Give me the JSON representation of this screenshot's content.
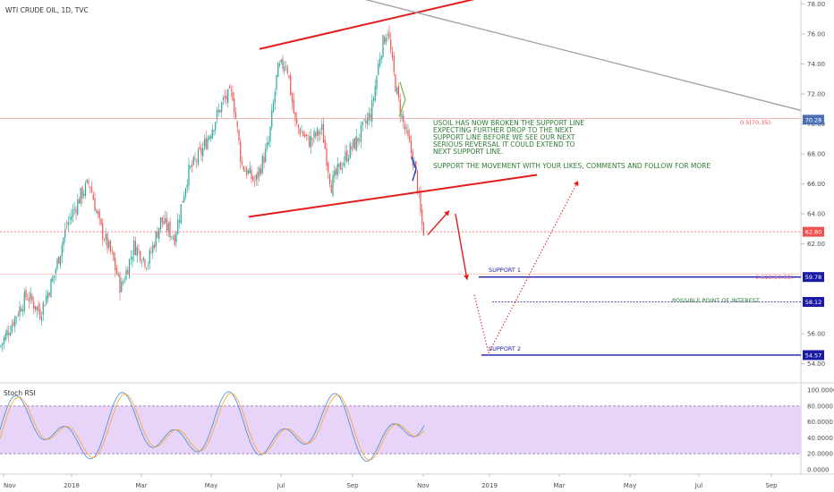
{
  "chart_data": {
    "type": "candlestick",
    "title": "WTI CRUDE OIL, 1D, TVC",
    "price_axis": {
      "range": [
        53.5,
        78.4
      ],
      "ticks": [
        "78.00",
        "76.00",
        "74.00",
        "72.00",
        "70.00",
        "68.00",
        "66.00",
        "64.00",
        "62.00",
        "56.00",
        "54.00"
      ]
    },
    "time_axis": {
      "labels": [
        "Nov",
        "2018",
        "Mar",
        "May",
        "Jul",
        "Sep",
        "Nov",
        "2019",
        "Mar",
        "May",
        "Jul",
        "Sep"
      ]
    },
    "price_labels": [
      {
        "value": 70.28,
        "text": "70.28",
        "color": "#4a6fb5"
      },
      {
        "value": 62.8,
        "text": "62.80",
        "color": "#ef5350"
      },
      {
        "value": 59.78,
        "text": "59.78",
        "color": "#1a1aa6"
      },
      {
        "value": 58.12,
        "text": "58.12",
        "color": "#1a1aa6"
      },
      {
        "value": 54.57,
        "text": "54.57",
        "color": "#1a1aa6"
      }
    ],
    "levels": [
      {
        "label": "SUPPORT 1",
        "value": 59.78
      },
      {
        "label": "POSSIBLE POINT OF INTEREST",
        "value": 58.12
      },
      {
        "label": "SUPPORT 2",
        "value": 54.57
      }
    ],
    "fib_levels": [
      {
        "label": "0.5(70.35)",
        "value": 70.35
      },
      {
        "label": "0.618(59.99)",
        "value": 59.99
      }
    ],
    "annotation_main": [
      "USOIL HAS NOW BROKEN THE SUPPORT LINE",
      "EXPECTING FURTHER DROP TO THE NEXT",
      "SUPPORT LINE BEFORE WE SEE OUR NEXT",
      "SERIOUS REVERSAL IT COULD EXTEND TO",
      "NEXT SUPPORT LINE."
    ],
    "annotation_secondary": "SUPPORT THE MOVEMENT WITH YOUR LIKES, COMMENTS AND FOLLOW FOR MORE",
    "close_path": [
      [
        0,
        55.1
      ],
      [
        15,
        56.9
      ],
      [
        30,
        58.6
      ],
      [
        45,
        57.4
      ],
      [
        60,
        59.8
      ],
      [
        75,
        63.3
      ],
      [
        90,
        65.2
      ],
      [
        100,
        66.1
      ],
      [
        112,
        63.1
      ],
      [
        125,
        61.2
      ],
      [
        135,
        59.0
      ],
      [
        150,
        61.9
      ],
      [
        165,
        60.7
      ],
      [
        180,
        63.6
      ],
      [
        195,
        62.4
      ],
      [
        210,
        66.7
      ],
      [
        225,
        68.1
      ],
      [
        240,
        70.2
      ],
      [
        250,
        71.6
      ],
      [
        260,
        72.0
      ],
      [
        270,
        67.3
      ],
      [
        285,
        66.1
      ],
      [
        300,
        68.6
      ],
      [
        310,
        73.5
      ],
      [
        320,
        74.2
      ],
      [
        330,
        70.0
      ],
      [
        345,
        68.8
      ],
      [
        360,
        69.6
      ],
      [
        370,
        65.9
      ],
      [
        385,
        67.7
      ],
      [
        400,
        69.0
      ],
      [
        415,
        70.8
      ],
      [
        425,
        74.8
      ],
      [
        433,
        76.4
      ],
      [
        440,
        73.3
      ],
      [
        445,
        71.6
      ],
      [
        450,
        70.2
      ],
      [
        455,
        69.1
      ],
      [
        460,
        68.0
      ],
      [
        465,
        66.6
      ],
      [
        468,
        65.0
      ],
      [
        471,
        63.4
      ],
      [
        474,
        62.8
      ]
    ],
    "stoch_rsi": {
      "name": "Stoch RSI",
      "range": [
        0,
        100
      ],
      "band": [
        20,
        80
      ],
      "ticks": [
        "100.0000",
        "80.0000",
        "60.0000",
        "40.0000",
        "20.0000",
        "0.0000"
      ]
    }
  }
}
